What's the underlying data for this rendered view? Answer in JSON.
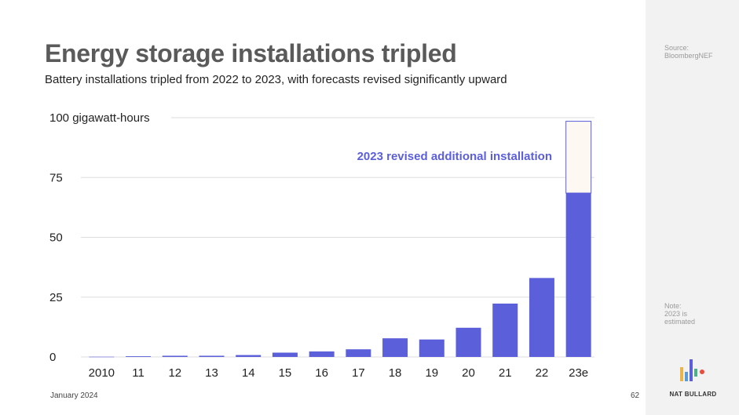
{
  "header": {
    "title": "Energy storage installations tripled",
    "subtitle": "Battery installations tripled from 2022 to 2023, with forecasts revised significantly upward"
  },
  "sidebar": {
    "source": "Source:\nBloombergNEF",
    "note": "Note:\n2023 is\nestimated",
    "brand": "NAT BULLARD"
  },
  "footer": {
    "date": "January 2024",
    "page": "62"
  },
  "colors": {
    "bar": "#5b5fd9",
    "revised": "#fdf8f2",
    "grid": "#dddddd",
    "title": "#5a5a5a"
  },
  "chart_data": {
    "type": "bar",
    "stacked": true,
    "categories": [
      "2010",
      "11",
      "12",
      "13",
      "14",
      "15",
      "16",
      "17",
      "18",
      "19",
      "20",
      "21",
      "22",
      "23e"
    ],
    "series": [
      {
        "name": "",
        "values": [
          0.1,
          0.3,
          0.5,
          0.5,
          0.8,
          1.8,
          2.3,
          3.2,
          7.8,
          7.3,
          12.2,
          22.3,
          33.0,
          68.5
        ]
      },
      {
        "name": "2023 revised additional installation",
        "values": [
          0,
          0,
          0,
          0,
          0,
          0,
          0,
          0,
          0,
          0,
          0,
          0,
          0,
          30.0
        ]
      }
    ],
    "y_ticks": [
      0,
      25,
      50,
      75,
      100
    ],
    "y_tick_labels": [
      "0",
      "25",
      "50",
      "75",
      "100 gigawatt-hours"
    ],
    "ylim": [
      0,
      100
    ],
    "annotation": "2023 revised additional installation",
    "grid": true,
    "legend": "none"
  }
}
